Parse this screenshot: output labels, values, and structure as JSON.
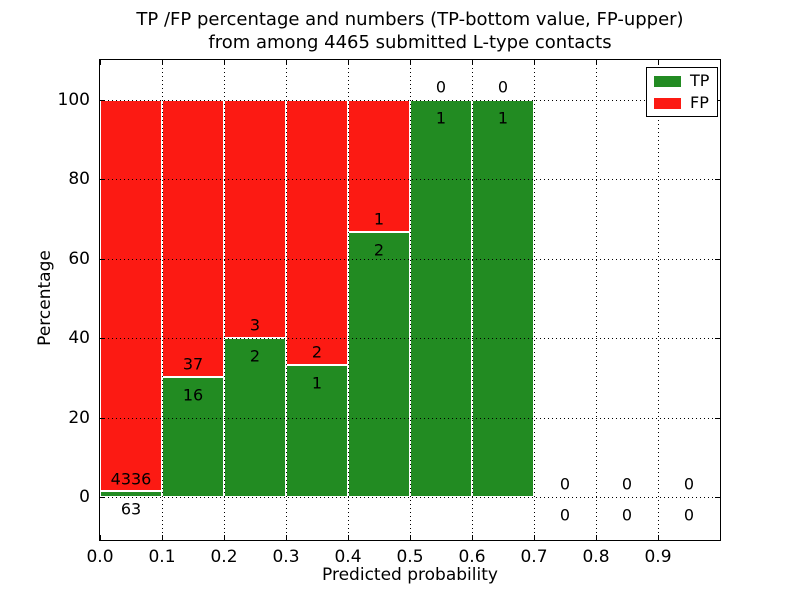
{
  "title": {
    "line1": "TP /FP percentage and numbers (TP-bottom value, FP-upper)",
    "line2": "from among 4465 submitted L-type contacts"
  },
  "axes": {
    "x_label": "Predicted probability",
    "y_label": "Percentage"
  },
  "legend": {
    "position": "upper right",
    "entries": [
      {
        "label": "TP",
        "color": "#228b22"
      },
      {
        "label": "FP",
        "color": "#fc1a13"
      }
    ]
  },
  "chart_data": {
    "type": "bar",
    "subtype": "stacked-percentage-histogram",
    "title": "TP /FP percentage and numbers (TP-bottom value, FP-upper) from among 4465 submitted L-type contacts",
    "xlabel": "Predicted probability",
    "ylabel": "Percentage",
    "total_contacts": 4465,
    "xlim": [
      0.0,
      1.0
    ],
    "ylim": [
      -10.8,
      110.0
    ],
    "x_ticks": [
      0.0,
      0.1,
      0.2,
      0.3,
      0.4,
      0.5,
      0.6,
      0.7,
      0.8,
      0.9
    ],
    "x_tick_labels": [
      "0.0",
      "0.1",
      "0.2",
      "0.3",
      "0.4",
      "0.5",
      "0.6",
      "0.7",
      "0.8",
      "0.9"
    ],
    "y_ticks": [
      0,
      20,
      40,
      60,
      80,
      100
    ],
    "y_tick_labels": [
      "0",
      "20",
      "40",
      "60",
      "80",
      "100"
    ],
    "bin_edges": [
      0.0,
      0.1,
      0.2,
      0.3,
      0.4,
      0.5,
      0.6,
      0.7,
      0.8,
      0.9,
      1.0
    ],
    "grid": "dotted black, both axes, drawn above bars",
    "legend_position": "upper right",
    "bar_edge_color": "#ffffff",
    "label_rule": "FP count printed above TP count at each bin center; FP at stack-top +3.2 pct, TP at stack-top -4.5 pct",
    "series": [
      {
        "name": "TP",
        "color": "#228b22",
        "counts": [
          63,
          16,
          2,
          1,
          2,
          1,
          1,
          0,
          0,
          0
        ],
        "pct": [
          1.43,
          30.19,
          40.0,
          33.33,
          66.67,
          100.0,
          100.0,
          0.0,
          0.0,
          0.0
        ]
      },
      {
        "name": "FP",
        "color": "#fc1a13",
        "counts": [
          4336,
          37,
          3,
          2,
          1,
          0,
          0,
          0,
          0,
          0
        ],
        "pct": [
          98.57,
          69.81,
          60.0,
          66.67,
          33.33,
          0.0,
          0.0,
          0.0,
          0.0,
          0.0
        ]
      }
    ]
  }
}
